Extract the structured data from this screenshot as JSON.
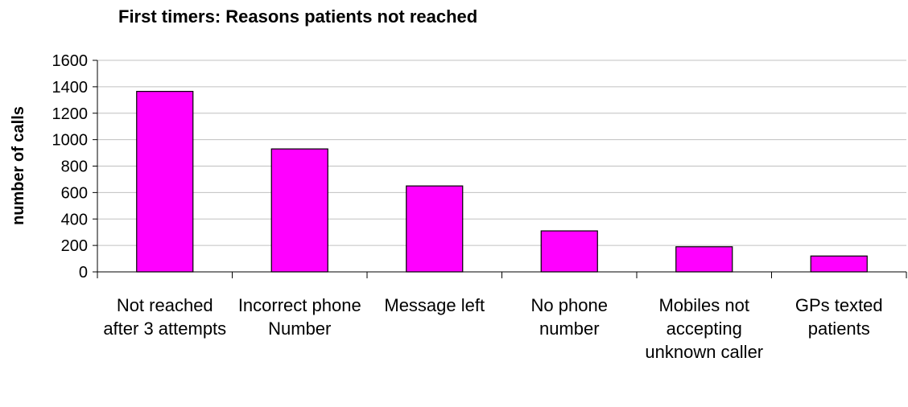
{
  "chart_data": {
    "type": "bar",
    "title": "First timers: Reasons patients not reached",
    "y_label": "number of calls",
    "categories": [
      "Not reached after 3 attempts",
      "Incorrect phone Number",
      "Message left",
      "No phone number",
      "Mobiles not accepting unknown caller",
      "GPs texted patients"
    ],
    "values": [
      1365,
      930,
      650,
      310,
      190,
      120
    ],
    "color": "#ff00ff",
    "ylim": [
      0,
      1600
    ],
    "yticks": [
      0,
      200,
      400,
      600,
      800,
      1000,
      1200,
      1400,
      1600
    ],
    "grid": true
  }
}
